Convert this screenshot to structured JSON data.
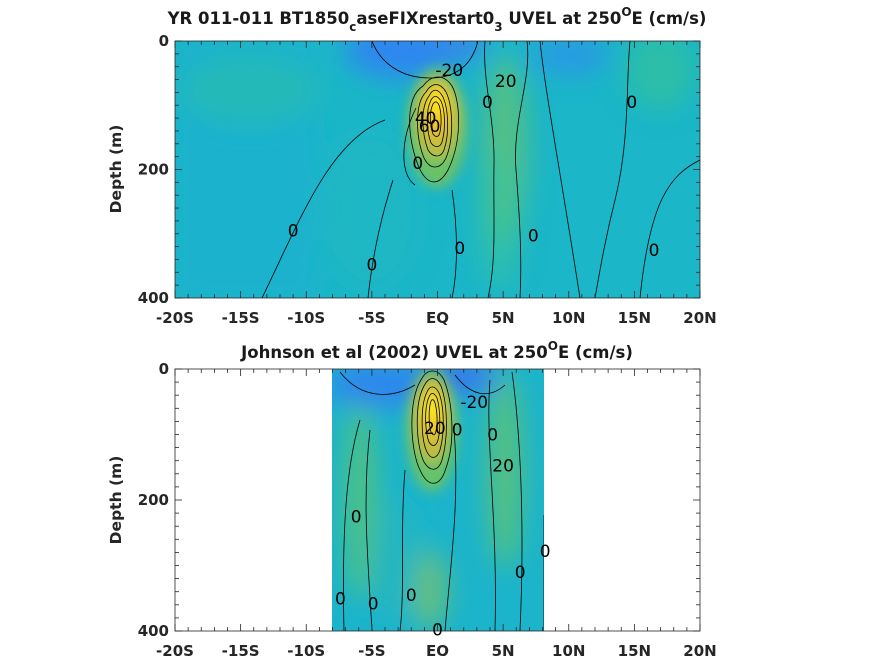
{
  "chart_data": [
    {
      "type": "heatmap",
      "title": "YR 011-011 BT1850",
      "title_sub": "c",
      "title_mid": "aseFIXrestart0",
      "title_sub2": "3",
      "title_rest": " UVEL at 250",
      "title_sup": "O",
      "title_end": "E (cm/s)",
      "ylabel": "Depth (m)",
      "xlim": [
        -20,
        20
      ],
      "ylim": [
        0,
        400
      ],
      "y_reversed": true,
      "x_ticks": [
        "-20S",
        "-15S",
        "-10S",
        "-5S",
        "EQ",
        "5N",
        "10N",
        "15N",
        "20N"
      ],
      "y_ticks": [
        "0",
        "200",
        "400"
      ],
      "data_extent_lat": [
        -20,
        20
      ],
      "colormap": [
        "#3e26a8",
        "#2e84f1",
        "#12b1d4",
        "#2dc09c",
        "#8cc454",
        "#e7b932",
        "#f8e61e",
        "#f9fb0e"
      ],
      "contour_labels": [
        {
          "text": "-20",
          "lat": 0.9,
          "depth": 45
        },
        {
          "text": "20",
          "lat": 5.2,
          "depth": 62
        },
        {
          "text": "0",
          "lat": 3.8,
          "depth": 95
        },
        {
          "text": "0",
          "lat": 14.8,
          "depth": 95
        },
        {
          "text": "40",
          "lat": -0.9,
          "depth": 120
        },
        {
          "text": "60",
          "lat": -0.6,
          "depth": 132
        },
        {
          "text": "0",
          "lat": -1.5,
          "depth": 190
        },
        {
          "text": "0",
          "lat": -11,
          "depth": 295
        },
        {
          "text": "0",
          "lat": 1.7,
          "depth": 322
        },
        {
          "text": "0",
          "lat": 7.3,
          "depth": 303
        },
        {
          "text": "0",
          "lat": -5,
          "depth": 348
        },
        {
          "text": "0",
          "lat": 16.5,
          "depth": 325
        }
      ]
    },
    {
      "type": "heatmap",
      "title": "Johnson et al (2002) UVEL at 250",
      "title_sup": "O",
      "title_end": "E (cm/s)",
      "ylabel": "Depth (m)",
      "xlim": [
        -20,
        20
      ],
      "ylim": [
        0,
        400
      ],
      "y_reversed": true,
      "x_ticks": [
        "-20S",
        "-15S",
        "-10S",
        "-5S",
        "EQ",
        "5N",
        "10N",
        "15N",
        "20N"
      ],
      "y_ticks": [
        "0",
        "200",
        "400"
      ],
      "data_extent_lat": [
        -8,
        8.2
      ],
      "colormap": [
        "#3e26a8",
        "#2e84f1",
        "#12b1d4",
        "#2dc09c",
        "#8cc454",
        "#e7b932",
        "#f8e61e",
        "#f9fb0e"
      ],
      "contour_labels": [
        {
          "text": "-20",
          "lat": 2.8,
          "depth": 50
        },
        {
          "text": "20",
          "lat": -0.2,
          "depth": 90
        },
        {
          "text": "0",
          "lat": 1.5,
          "depth": 92
        },
        {
          "text": "0",
          "lat": 4.2,
          "depth": 100
        },
        {
          "text": "20",
          "lat": 5,
          "depth": 147
        },
        {
          "text": "0",
          "lat": -6.2,
          "depth": 225
        },
        {
          "text": "0",
          "lat": 8.2,
          "depth": 278
        },
        {
          "text": "0",
          "lat": 6.3,
          "depth": 310
        },
        {
          "text": "0",
          "lat": -7.4,
          "depth": 350
        },
        {
          "text": "0",
          "lat": -2,
          "depth": 345
        },
        {
          "text": "0",
          "lat": -4.9,
          "depth": 358
        },
        {
          "text": "0",
          "lat": 0,
          "depth": 398
        }
      ]
    }
  ]
}
